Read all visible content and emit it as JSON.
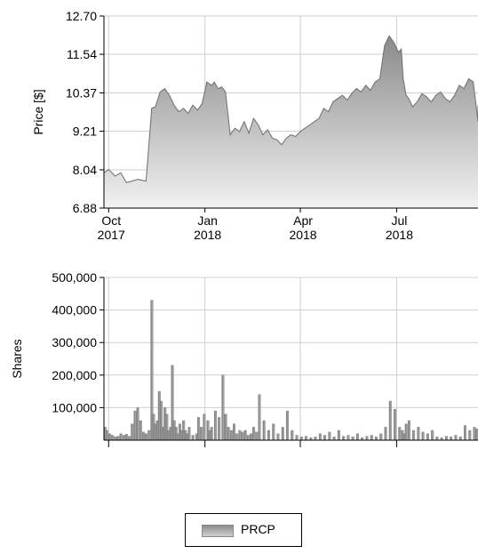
{
  "chart_data": [
    {
      "type": "area",
      "ylabel": "Price [$]",
      "ylim": [
        6.88,
        12.7
      ],
      "yticks": [
        "12.70",
        "11.54",
        "10.37",
        "9.21",
        "8.04",
        "6.88"
      ],
      "xticks": [
        {
          "month": "Oct",
          "year": "2017"
        },
        {
          "month": "Jan",
          "year": "2018"
        },
        {
          "month": "Apr",
          "year": "2018"
        },
        {
          "month": "Jul",
          "year": "2018"
        }
      ],
      "x_range_days": [
        0,
        400
      ],
      "series": [
        {
          "name": "PRCP",
          "x_days": [
            0,
            5,
            12,
            18,
            24,
            30,
            36,
            45,
            50,
            51,
            55,
            60,
            65,
            70,
            75,
            80,
            85,
            90,
            95,
            100,
            105,
            110,
            115,
            118,
            122,
            126,
            130,
            135,
            140,
            145,
            150,
            155,
            160,
            165,
            170,
            175,
            180,
            185,
            190,
            195,
            200,
            205,
            210,
            215,
            220,
            225,
            230,
            235,
            240,
            245,
            250,
            255,
            260,
            265,
            270,
            275,
            280,
            285,
            290,
            295,
            300,
            305,
            310,
            315,
            318,
            320,
            323,
            326,
            330,
            335,
            340,
            345,
            350,
            355,
            360,
            365,
            370,
            375,
            380,
            385,
            390,
            395,
            400,
            405,
            410
          ],
          "values": [
            7.95,
            8.05,
            7.85,
            7.95,
            7.65,
            7.7,
            7.75,
            7.7,
            9.5,
            9.9,
            9.95,
            10.4,
            10.5,
            10.3,
            10.0,
            9.8,
            9.9,
            9.75,
            10.0,
            9.85,
            10.05,
            10.7,
            10.6,
            10.7,
            10.5,
            10.55,
            10.4,
            9.1,
            9.3,
            9.2,
            9.5,
            9.15,
            9.6,
            9.4,
            9.1,
            9.25,
            9.0,
            8.95,
            8.8,
            9.0,
            9.1,
            9.05,
            9.2,
            9.3,
            9.4,
            9.5,
            9.6,
            9.9,
            9.8,
            10.1,
            10.2,
            10.3,
            10.15,
            10.35,
            10.5,
            10.4,
            10.6,
            10.45,
            10.7,
            10.8,
            11.8,
            12.1,
            11.9,
            11.6,
            11.7,
            10.8,
            10.3,
            10.2,
            9.95,
            10.1,
            10.35,
            10.25,
            10.1,
            10.3,
            10.4,
            10.2,
            10.1,
            10.3,
            10.6,
            10.5,
            10.8,
            10.7,
            9.5,
            10.0,
            9.8
          ]
        }
      ]
    },
    {
      "type": "bar",
      "ylabel": "Shares",
      "ylim": [
        0,
        500000
      ],
      "yticks": [
        "500,000",
        "400,000",
        "300,000",
        "200,000",
        "100,000"
      ],
      "x_range_days": [
        0,
        400
      ],
      "series": [
        {
          "name": "PRCP",
          "x_days": [
            0,
            2,
            5,
            8,
            11,
            14,
            17,
            20,
            23,
            26,
            29,
            32,
            35,
            38,
            41,
            44,
            47,
            50,
            52,
            54,
            56,
            58,
            60,
            62,
            64,
            66,
            68,
            70,
            72,
            74,
            76,
            78,
            80,
            82,
            84,
            86,
            88,
            90,
            94,
            98,
            100,
            103,
            106,
            110,
            112,
            114,
            118,
            122,
            126,
            129,
            132,
            135,
            138,
            141,
            144,
            147,
            150,
            153,
            156,
            159,
            162,
            165,
            170,
            175,
            180,
            185,
            190,
            195,
            200,
            205,
            210,
            215,
            220,
            225,
            230,
            235,
            240,
            245,
            250,
            255,
            260,
            265,
            270,
            275,
            280,
            285,
            290,
            295,
            300,
            305,
            310,
            315,
            318,
            320,
            322,
            325,
            330,
            335,
            340,
            345,
            350,
            355,
            360,
            365,
            370,
            375,
            380,
            385,
            390,
            395,
            400,
            405,
            410
          ],
          "values": [
            40000,
            30000,
            20000,
            15000,
            10000,
            12000,
            20000,
            15000,
            18000,
            12000,
            50000,
            90000,
            100000,
            60000,
            25000,
            20000,
            30000,
            430000,
            80000,
            50000,
            60000,
            150000,
            120000,
            40000,
            100000,
            80000,
            30000,
            40000,
            230000,
            60000,
            40000,
            20000,
            50000,
            30000,
            60000,
            30000,
            20000,
            40000,
            15000,
            20000,
            70000,
            40000,
            80000,
            60000,
            30000,
            40000,
            90000,
            70000,
            200000,
            80000,
            40000,
            30000,
            50000,
            20000,
            30000,
            25000,
            30000,
            15000,
            20000,
            40000,
            25000,
            140000,
            60000,
            30000,
            50000,
            20000,
            40000,
            90000,
            30000,
            15000,
            10000,
            12000,
            8000,
            10000,
            20000,
            15000,
            25000,
            10000,
            30000,
            12000,
            15000,
            10000,
            20000,
            8000,
            12000,
            15000,
            10000,
            20000,
            40000,
            120000,
            95000,
            40000,
            30000,
            20000,
            50000,
            60000,
            30000,
            40000,
            25000,
            20000,
            30000,
            10000,
            8000,
            12000,
            10000,
            15000,
            10000,
            45000,
            30000,
            40000,
            20000,
            35000,
            25000
          ]
        }
      ]
    }
  ],
  "legend": {
    "label": "PRCP"
  }
}
